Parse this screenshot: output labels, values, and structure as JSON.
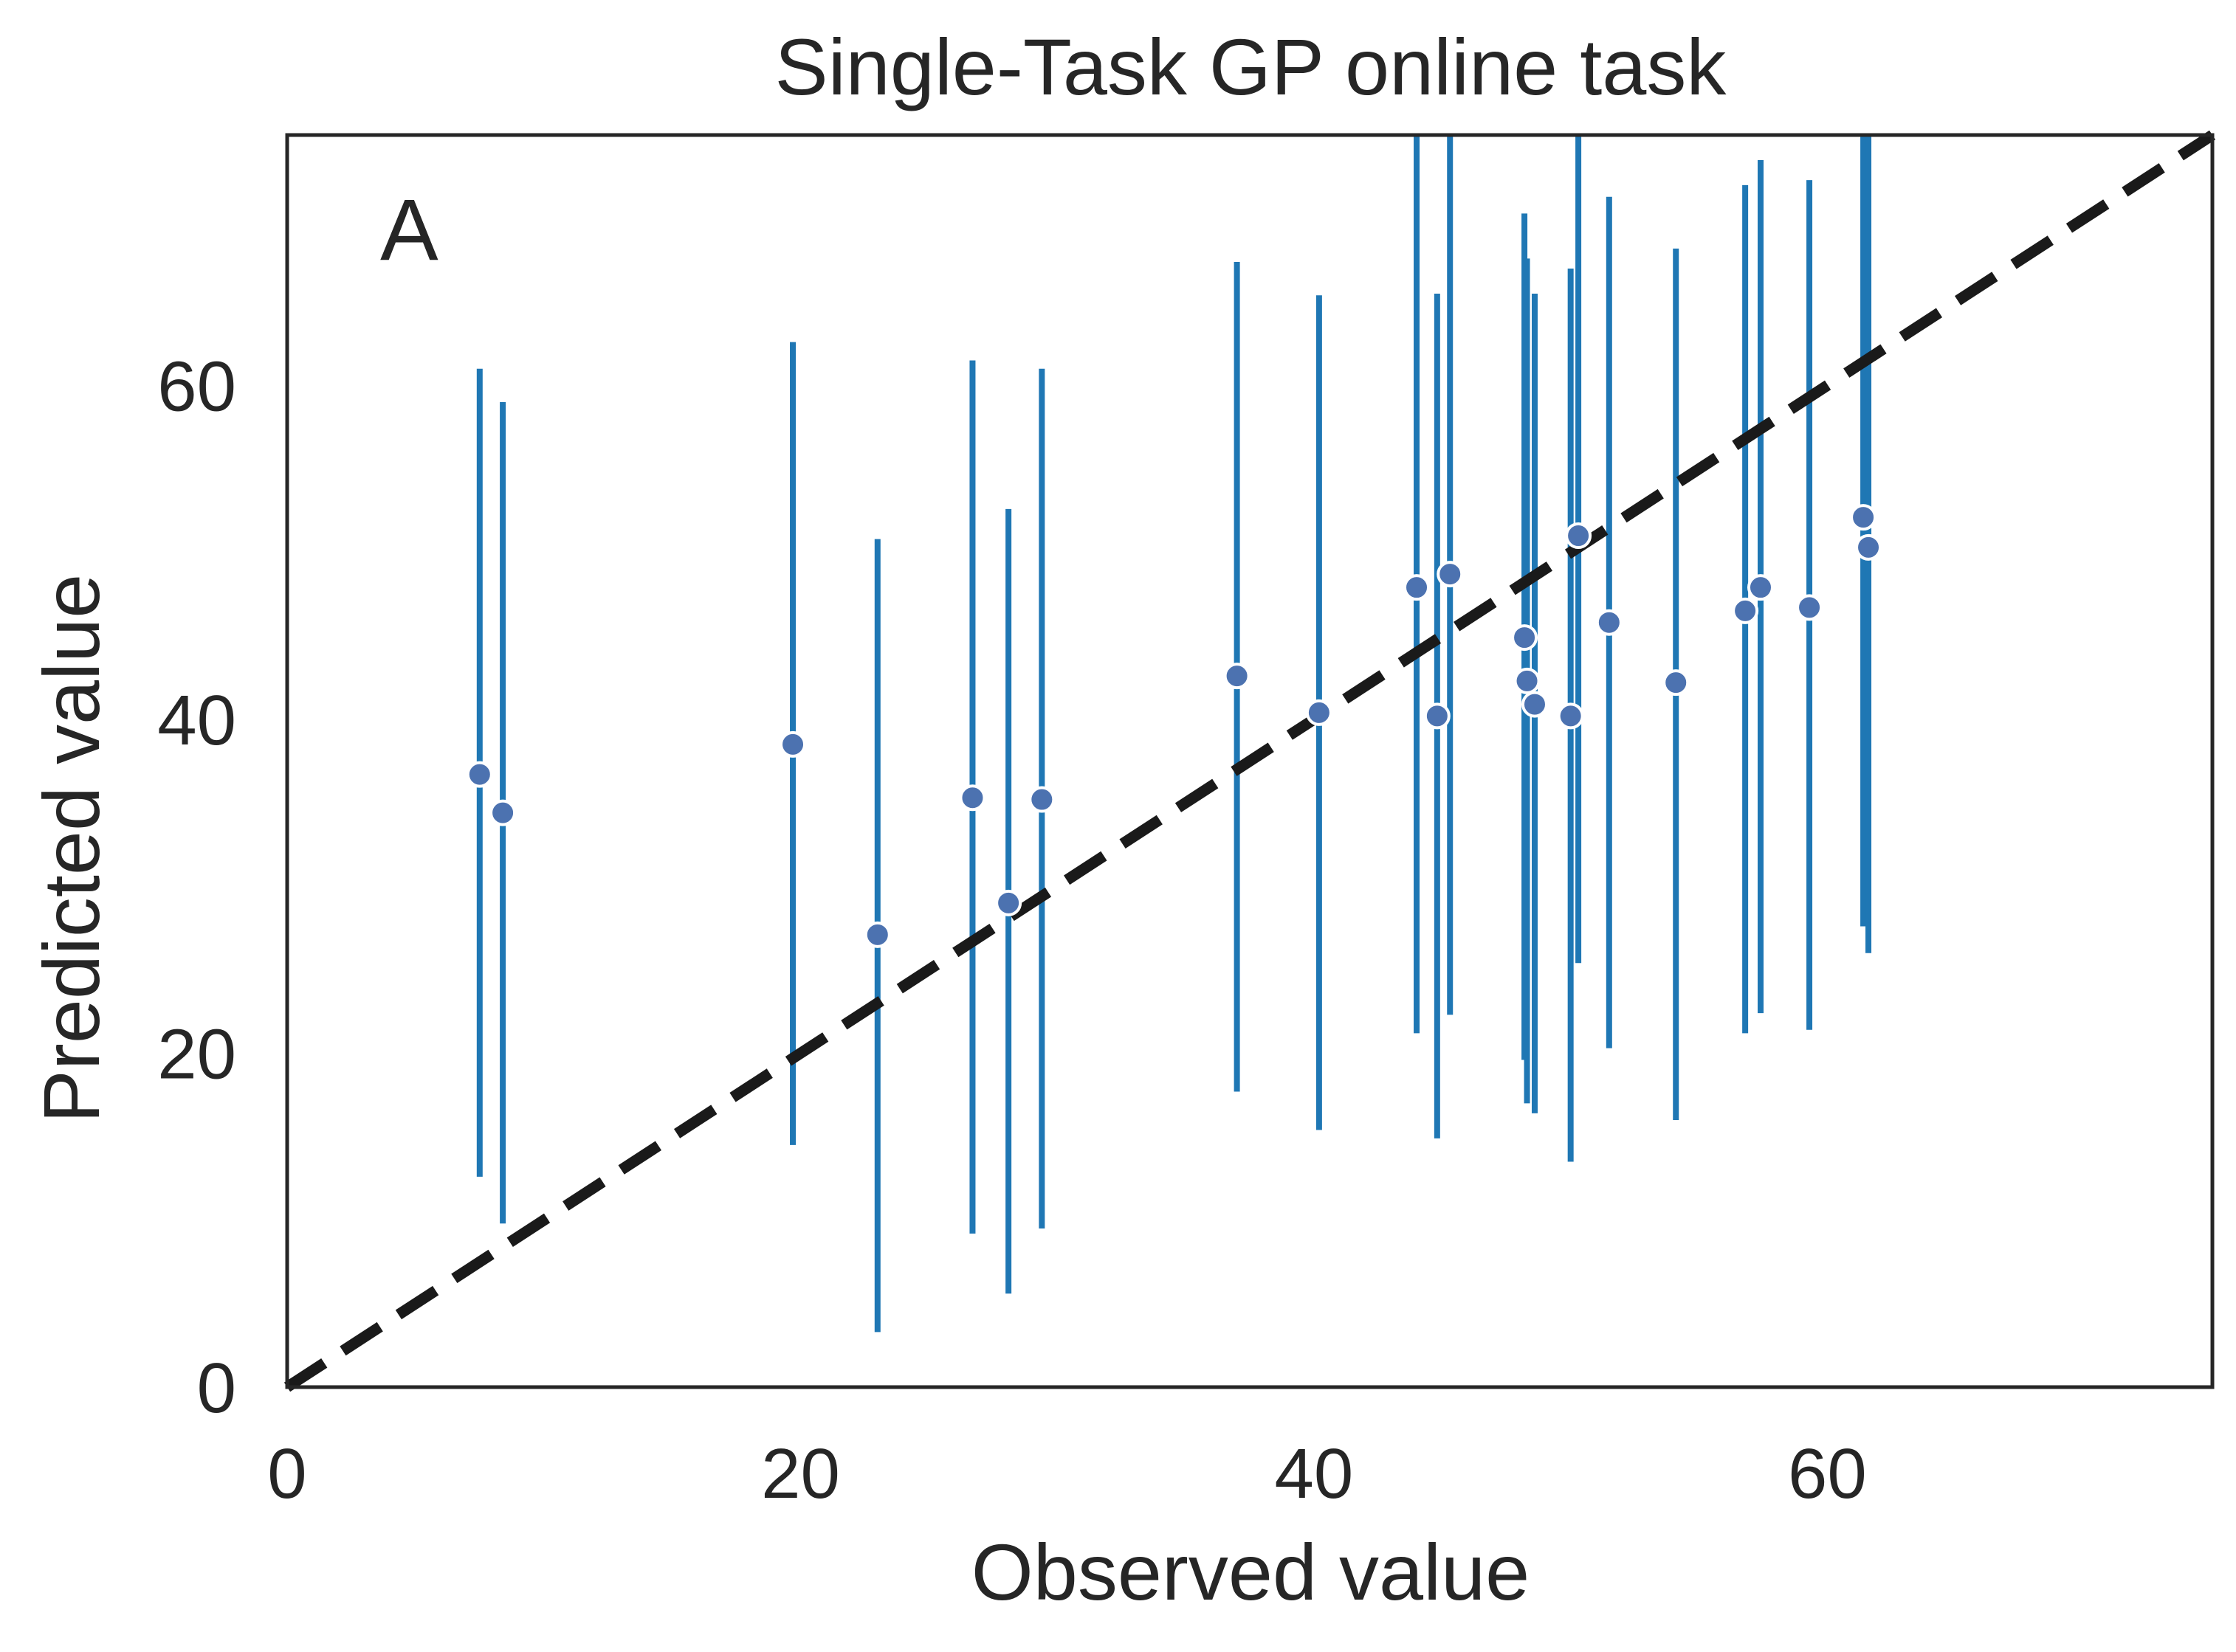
{
  "chart_data": {
    "type": "scatter",
    "title": "Single-Task GP online task",
    "xlabel": "Observed value",
    "ylabel": "Predicted value",
    "panel_label": "A",
    "xlim": [
      0,
      75
    ],
    "ylim": [
      0,
      75
    ],
    "xticks": [
      0,
      20,
      40,
      60
    ],
    "yticks": [
      0,
      20,
      40,
      60
    ],
    "grid": false,
    "legend": "none",
    "colors": {
      "marker": "#4c72b0",
      "errorbar": "#1f77b4",
      "diagonal": "#1a1a1a",
      "frame": "#262626"
    },
    "diagonal": {
      "from": [
        0,
        0
      ],
      "to": [
        75,
        75
      ],
      "style": "dashed"
    },
    "points": [
      {
        "x": 7.5,
        "y": 36.7,
        "lo": 12.6,
        "hi": 61.0
      },
      {
        "x": 8.4,
        "y": 34.4,
        "lo": 9.8,
        "hi": 59.0
      },
      {
        "x": 19.7,
        "y": 38.5,
        "lo": 14.5,
        "hi": 62.6
      },
      {
        "x": 23.0,
        "y": 27.1,
        "lo": 3.3,
        "hi": 50.8
      },
      {
        "x": 26.7,
        "y": 35.3,
        "lo": 9.2,
        "hi": 61.5
      },
      {
        "x": 28.1,
        "y": 29.0,
        "lo": 5.6,
        "hi": 52.6
      },
      {
        "x": 29.4,
        "y": 35.2,
        "lo": 9.5,
        "hi": 61.0
      },
      {
        "x": 37.0,
        "y": 42.6,
        "lo": 17.7,
        "hi": 67.4
      },
      {
        "x": 40.2,
        "y": 40.4,
        "lo": 15.4,
        "hi": 65.4
      },
      {
        "x": 44.0,
        "y": 47.9,
        "lo": 21.2,
        "hi": 75.0
      },
      {
        "x": 44.8,
        "y": 40.2,
        "lo": 14.9,
        "hi": 65.5
      },
      {
        "x": 45.3,
        "y": 48.7,
        "lo": 22.3,
        "hi": 75.0
      },
      {
        "x": 48.2,
        "y": 44.9,
        "lo": 19.6,
        "hi": 70.3
      },
      {
        "x": 48.3,
        "y": 42.3,
        "lo": 17.0,
        "hi": 67.6
      },
      {
        "x": 48.6,
        "y": 40.9,
        "lo": 16.4,
        "hi": 65.5
      },
      {
        "x": 50.0,
        "y": 40.2,
        "lo": 13.5,
        "hi": 67.0
      },
      {
        "x": 50.3,
        "y": 51.0,
        "lo": 25.4,
        "hi": 75.0
      },
      {
        "x": 51.5,
        "y": 45.8,
        "lo": 20.3,
        "hi": 71.3
      },
      {
        "x": 54.1,
        "y": 42.2,
        "lo": 16.0,
        "hi": 68.2
      },
      {
        "x": 56.8,
        "y": 46.5,
        "lo": 21.2,
        "hi": 72.0
      },
      {
        "x": 57.4,
        "y": 47.9,
        "lo": 22.4,
        "hi": 73.5
      },
      {
        "x": 59.3,
        "y": 46.7,
        "lo": 21.4,
        "hi": 72.3
      },
      {
        "x": 61.4,
        "y": 52.1,
        "lo": 27.6,
        "hi": 75.0
      },
      {
        "x": 61.6,
        "y": 50.3,
        "lo": 26.0,
        "hi": 75.0
      }
    ]
  }
}
